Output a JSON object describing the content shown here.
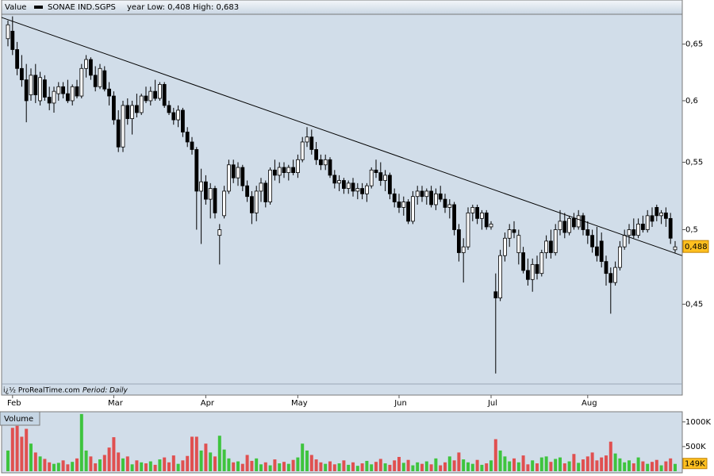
{
  "header": {
    "label": "Value",
    "instrument": "SONAE IND.SGPS",
    "range_text": "year Low: 0,408 High: 0,683"
  },
  "footer": {
    "source": "i¿½ ProRealTime.com",
    "period_label": "Period:",
    "period": "Daily"
  },
  "chart_data": [
    {
      "type": "candlestick",
      "log": true,
      "ylim": [
        0.402,
        0.678
      ],
      "yticks": [
        {
          "value": 0.45,
          "label": "0,45"
        },
        {
          "value": 0.5,
          "label": "0,5"
        },
        {
          "value": 0.55,
          "label": "0,55"
        },
        {
          "value": 0.6,
          "label": "0,6"
        },
        {
          "value": 0.65,
          "label": "0,65"
        }
      ],
      "up_color": "#ffffff",
      "down_color": "#000000",
      "categories": [
        null,
        "Feb",
        null,
        null,
        null,
        null,
        null,
        null,
        null,
        null,
        null,
        null,
        null,
        null,
        null,
        null,
        null,
        null,
        null,
        null,
        null,
        null,
        null,
        "Mar",
        null,
        null,
        null,
        null,
        null,
        null,
        null,
        null,
        null,
        null,
        null,
        null,
        null,
        null,
        null,
        null,
        null,
        null,
        null,
        "Apr",
        null,
        null,
        null,
        null,
        null,
        null,
        null,
        null,
        null,
        null,
        null,
        null,
        null,
        null,
        null,
        null,
        null,
        null,
        null,
        "May",
        null,
        null,
        null,
        null,
        null,
        null,
        null,
        null,
        null,
        null,
        null,
        null,
        null,
        null,
        null,
        null,
        null,
        null,
        null,
        null,
        null,
        "Jun",
        null,
        null,
        null,
        null,
        null,
        null,
        null,
        null,
        null,
        null,
        null,
        null,
        null,
        null,
        null,
        null,
        null,
        null,
        null,
        "Jul",
        null,
        null,
        null,
        null,
        null,
        null,
        null,
        null,
        null,
        null,
        null,
        null,
        null,
        null,
        null,
        null,
        null,
        null,
        null,
        null,
        "Aug",
        null,
        null,
        null,
        null,
        null,
        null,
        null,
        null,
        null,
        null,
        null,
        null,
        null,
        null,
        null,
        null,
        null,
        null,
        null
      ],
      "ohlc": [
        [
          0.655,
          0.672,
          0.648,
          0.668
        ],
        [
          0.662,
          0.676,
          0.64,
          0.645
        ],
        [
          0.645,
          0.652,
          0.622,
          0.628
        ],
        [
          0.628,
          0.64,
          0.612,
          0.618
        ],
        [
          0.618,
          0.632,
          0.582,
          0.6
        ],
        [
          0.605,
          0.628,
          0.6,
          0.622
        ],
        [
          0.622,
          0.632,
          0.598,
          0.605
        ],
        [
          0.6,
          0.625,
          0.596,
          0.62
        ],
        [
          0.618,
          0.622,
          0.6,
          0.603
        ],
        [
          0.603,
          0.612,
          0.592,
          0.598
        ],
        [
          0.598,
          0.612,
          0.59,
          0.608
        ],
        [
          0.606,
          0.616,
          0.6,
          0.612
        ],
        [
          0.612,
          0.616,
          0.602,
          0.606
        ],
        [
          0.606,
          0.618,
          0.598,
          0.6
        ],
        [
          0.6,
          0.614,
          0.596,
          0.612
        ],
        [
          0.612,
          0.618,
          0.602,
          0.604
        ],
        [
          0.604,
          0.632,
          0.602,
          0.628
        ],
        [
          0.628,
          0.64,
          0.62,
          0.636
        ],
        [
          0.636,
          0.638,
          0.618,
          0.622
        ],
        [
          0.622,
          0.63,
          0.608,
          0.612
        ],
        [
          0.612,
          0.632,
          0.61,
          0.628
        ],
        [
          0.626,
          0.63,
          0.608,
          0.61
        ],
        [
          0.61,
          0.616,
          0.596,
          0.604
        ],
        [
          0.604,
          0.608,
          0.58,
          0.584
        ],
        [
          0.584,
          0.592,
          0.558,
          0.562
        ],
        [
          0.562,
          0.6,
          0.558,
          0.596
        ],
        [
          0.596,
          0.602,
          0.58,
          0.585
        ],
        [
          0.585,
          0.6,
          0.572,
          0.596
        ],
        [
          0.596,
          0.606,
          0.586,
          0.59
        ],
        [
          0.59,
          0.606,
          0.588,
          0.604
        ],
        [
          0.604,
          0.612,
          0.598,
          0.6
        ],
        [
          0.6,
          0.612,
          0.596,
          0.608
        ],
        [
          0.608,
          0.618,
          0.6,
          0.602
        ],
        [
          0.602,
          0.616,
          0.6,
          0.614
        ],
        [
          0.614,
          0.616,
          0.594,
          0.596
        ],
        [
          0.596,
          0.6,
          0.588,
          0.59
        ],
        [
          0.59,
          0.594,
          0.58,
          0.584
        ],
        [
          0.584,
          0.596,
          0.578,
          0.592
        ],
        [
          0.592,
          0.594,
          0.57,
          0.574
        ],
        [
          0.574,
          0.578,
          0.562,
          0.566
        ],
        [
          0.566,
          0.57,
          0.556,
          0.56
        ],
        [
          0.56,
          0.562,
          0.5,
          0.528
        ],
        [
          0.528,
          0.545,
          0.49,
          0.535
        ],
        [
          0.535,
          0.54,
          0.518,
          0.522
        ],
        [
          0.522,
          0.534,
          0.508,
          0.53
        ],
        [
          0.53,
          0.532,
          0.508,
          0.512
        ],
        [
          0.496,
          0.504,
          0.476,
          0.5
        ],
        [
          0.51,
          0.532,
          0.508,
          0.528
        ],
        [
          0.528,
          0.552,
          0.526,
          0.548
        ],
        [
          0.548,
          0.552,
          0.534,
          0.538
        ],
        [
          0.538,
          0.55,
          0.532,
          0.546
        ],
        [
          0.546,
          0.548,
          0.528,
          0.532
        ],
        [
          0.532,
          0.536,
          0.52,
          0.524
        ],
        [
          0.524,
          0.528,
          0.504,
          0.512
        ],
        [
          0.512,
          0.532,
          0.506,
          0.528
        ],
        [
          0.528,
          0.538,
          0.52,
          0.534
        ],
        [
          0.534,
          0.536,
          0.516,
          0.52
        ],
        [
          0.52,
          0.546,
          0.518,
          0.544
        ],
        [
          0.544,
          0.552,
          0.536,
          0.54
        ],
        [
          0.54,
          0.55,
          0.534,
          0.546
        ],
        [
          0.546,
          0.55,
          0.538,
          0.542
        ],
        [
          0.542,
          0.548,
          0.536,
          0.546
        ],
        [
          0.546,
          0.552,
          0.54,
          0.542
        ],
        [
          0.542,
          0.556,
          0.538,
          0.552
        ],
        [
          0.552,
          0.57,
          0.55,
          0.566
        ],
        [
          0.566,
          0.578,
          0.562,
          0.57
        ],
        [
          0.57,
          0.576,
          0.556,
          0.56
        ],
        [
          0.56,
          0.566,
          0.548,
          0.552
        ],
        [
          0.552,
          0.556,
          0.544,
          0.548
        ],
        [
          0.548,
          0.556,
          0.544,
          0.552
        ],
        [
          0.552,
          0.554,
          0.538,
          0.54
        ],
        [
          0.54,
          0.544,
          0.53,
          0.534
        ],
        [
          0.534,
          0.54,
          0.528,
          0.536
        ],
        [
          0.536,
          0.538,
          0.526,
          0.53
        ],
        [
          0.53,
          0.536,
          0.526,
          0.534
        ],
        [
          0.534,
          0.538,
          0.524,
          0.528
        ],
        [
          0.528,
          0.534,
          0.522,
          0.53
        ],
        [
          0.53,
          0.534,
          0.522,
          0.526
        ],
        [
          0.526,
          0.534,
          0.52,
          0.532
        ],
        [
          0.532,
          0.546,
          0.53,
          0.544
        ],
        [
          0.544,
          0.552,
          0.538,
          0.542
        ],
        [
          0.542,
          0.55,
          0.532,
          0.536
        ],
        [
          0.536,
          0.544,
          0.528,
          0.54
        ],
        [
          0.54,
          0.542,
          0.522,
          0.526
        ],
        [
          0.526,
          0.53,
          0.516,
          0.52
        ],
        [
          0.52,
          0.526,
          0.512,
          0.516
        ],
        [
          0.516,
          0.524,
          0.51,
          0.52
        ],
        [
          0.52,
          0.522,
          0.504,
          0.506
        ],
        [
          0.506,
          0.528,
          0.504,
          0.524
        ],
        [
          0.524,
          0.532,
          0.518,
          0.528
        ],
        [
          0.528,
          0.532,
          0.52,
          0.524
        ],
        [
          0.524,
          0.53,
          0.518,
          0.528
        ],
        [
          0.528,
          0.532,
          0.516,
          0.518
        ],
        [
          0.518,
          0.53,
          0.514,
          0.526
        ],
        [
          0.526,
          0.532,
          0.52,
          0.522
        ],
        [
          0.522,
          0.526,
          0.512,
          0.516
        ],
        [
          0.516,
          0.522,
          0.508,
          0.518
        ],
        [
          0.518,
          0.52,
          0.496,
          0.5
        ],
        [
          0.5,
          0.504,
          0.478,
          0.484
        ],
        [
          0.484,
          0.494,
          0.464,
          0.488
        ],
        [
          0.488,
          0.516,
          0.486,
          0.512
        ],
        [
          0.512,
          0.518,
          0.506,
          0.516
        ],
        [
          0.516,
          0.518,
          0.504,
          0.508
        ],
        [
          0.508,
          0.514,
          0.5,
          0.512
        ],
        [
          0.512,
          0.514,
          0.5,
          0.502
        ],
        [
          0.502,
          0.506,
          0.5,
          0.504
        ],
        [
          0.458,
          0.47,
          0.408,
          0.454
        ],
        [
          0.454,
          0.486,
          0.452,
          0.482
        ],
        [
          0.482,
          0.498,
          0.478,
          0.494
        ],
        [
          0.494,
          0.504,
          0.488,
          0.5
        ],
        [
          0.5,
          0.506,
          0.494,
          0.498
        ],
        [
          0.484,
          0.5,
          0.476,
          0.496
        ],
        [
          0.484,
          0.488,
          0.47,
          0.472
        ],
        [
          0.472,
          0.48,
          0.462,
          0.466
        ],
        [
          0.466,
          0.48,
          0.458,
          0.476
        ],
        [
          0.476,
          0.482,
          0.466,
          0.47
        ],
        [
          0.47,
          0.486,
          0.468,
          0.484
        ],
        [
          0.484,
          0.496,
          0.48,
          0.492
        ],
        [
          0.492,
          0.5,
          0.48,
          0.484
        ],
        [
          0.484,
          0.504,
          0.482,
          0.5
        ],
        [
          0.5,
          0.514,
          0.496,
          0.506
        ],
        [
          0.506,
          0.512,
          0.494,
          0.498
        ],
        [
          0.498,
          0.51,
          0.496,
          0.508
        ],
        [
          0.508,
          0.512,
          0.5,
          0.502
        ],
        [
          0.502,
          0.514,
          0.5,
          0.51
        ],
        [
          0.51,
          0.512,
          0.496,
          0.5
        ],
        [
          0.5,
          0.506,
          0.49,
          0.496
        ],
        [
          0.496,
          0.5,
          0.484,
          0.488
        ],
        [
          0.488,
          0.502,
          0.478,
          0.482
        ],
        [
          0.492,
          0.498,
          0.474,
          0.478
        ],
        [
          0.478,
          0.482,
          0.462,
          0.47
        ],
        [
          0.47,
          0.474,
          0.444,
          0.464
        ],
        [
          0.464,
          0.478,
          0.462,
          0.474
        ],
        [
          0.474,
          0.492,
          0.472,
          0.488
        ],
        [
          0.488,
          0.5,
          0.486,
          0.496
        ],
        [
          0.496,
          0.504,
          0.49,
          0.5
        ],
        [
          0.5,
          0.508,
          0.494,
          0.496
        ],
        [
          0.496,
          0.508,
          0.494,
          0.504
        ],
        [
          0.504,
          0.51,
          0.498,
          0.5
        ],
        [
          0.5,
          0.514,
          0.498,
          0.51
        ],
        [
          0.51,
          0.516,
          0.502,
          0.506
        ],
        [
          0.516,
          0.518,
          0.506,
          0.51
        ],
        [
          0.51,
          0.514,
          0.504,
          0.512
        ],
        [
          0.512,
          0.516,
          0.502,
          0.508
        ],
        [
          0.508,
          0.512,
          0.49,
          0.494
        ],
        [
          0.486,
          0.492,
          0.484,
          0.488
        ]
      ],
      "trendline": {
        "x": [
          -1.4,
          146.5
        ],
        "y": [
          0.675,
          0.482
        ]
      },
      "last_price": {
        "value": 0.488,
        "label": "0,488"
      }
    },
    {
      "type": "bar",
      "title": "Volume",
      "up_color": "#3ec43e",
      "down_color": "#e05050",
      "ylim": [
        0,
        1190
      ],
      "yticks": [
        {
          "value": 500,
          "label": "500K"
        },
        {
          "value": 1000,
          "label": "1000K"
        }
      ],
      "values": [
        420,
        880,
        920,
        700,
        860,
        560,
        380,
        300,
        250,
        180,
        150,
        170,
        220,
        140,
        190,
        260,
        1160,
        420,
        300,
        160,
        240,
        330,
        480,
        690,
        380,
        260,
        300,
        140,
        220,
        180,
        160,
        200,
        130,
        240,
        280,
        180,
        320,
        150,
        220,
        310,
        700,
        700,
        420,
        560,
        380,
        300,
        720,
        440,
        260,
        180,
        200,
        150,
        330,
        210,
        260,
        140,
        180,
        120,
        240,
        160,
        190,
        150,
        230,
        280,
        560,
        420,
        330,
        240,
        180,
        150,
        200,
        140,
        160,
        220,
        130,
        180,
        110,
        160,
        210,
        140,
        190,
        250,
        160,
        130,
        220,
        290,
        170,
        230,
        120,
        180,
        150,
        200,
        140,
        260,
        120,
        180,
        300,
        220,
        380,
        240,
        180,
        150,
        230,
        130,
        160,
        220,
        650,
        420,
        300,
        200,
        260,
        180,
        320,
        140,
        220,
        160,
        280,
        300,
        190,
        250,
        280,
        160,
        200,
        350,
        170,
        240,
        300,
        380,
        220,
        280,
        320,
        600,
        360,
        260,
        180,
        220,
        160,
        280,
        200,
        150,
        190,
        230,
        120,
        200,
        260,
        149
      ],
      "last_value": {
        "value": 149,
        "label": "149K"
      }
    }
  ]
}
